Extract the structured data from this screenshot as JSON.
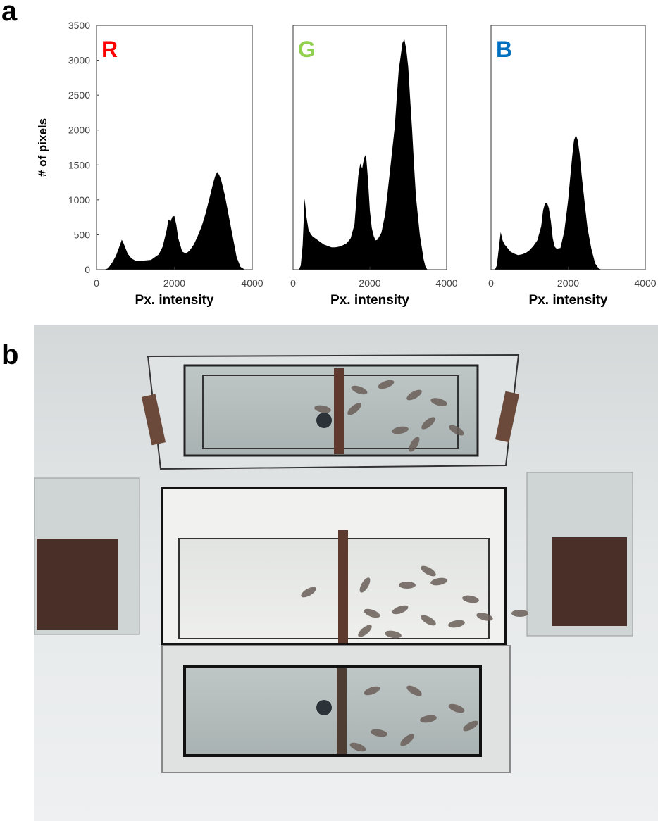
{
  "panels": {
    "a": "a",
    "b": "b"
  },
  "chart_data": [
    {
      "type": "area",
      "channel": "R",
      "color": "#ff0000",
      "xlabel": "Px. intensity",
      "ylabel": "# of pixels",
      "xlim": [
        0,
        4000
      ],
      "ylim": [
        0,
        3500
      ],
      "xticks": [
        "0",
        "2000",
        "4000"
      ],
      "yticks": [
        "0",
        "500",
        "1000",
        "1500",
        "2000",
        "2500",
        "3000",
        "3500"
      ],
      "x": [
        0,
        200,
        300,
        400,
        500,
        600,
        650,
        700,
        800,
        900,
        1000,
        1200,
        1400,
        1600,
        1700,
        1800,
        1850,
        1900,
        1950,
        2000,
        2050,
        2100,
        2200,
        2300,
        2400,
        2500,
        2600,
        2700,
        2800,
        2900,
        3000,
        3050,
        3100,
        3150,
        3200,
        3300,
        3400,
        3500,
        3600,
        3700,
        3800,
        3900,
        4000
      ],
      "y": [
        0,
        0,
        20,
        100,
        200,
        350,
        430,
        370,
        230,
        160,
        130,
        130,
        140,
        220,
        330,
        560,
        720,
        690,
        760,
        770,
        640,
        450,
        260,
        230,
        280,
        360,
        480,
        620,
        800,
        1020,
        1250,
        1340,
        1400,
        1360,
        1290,
        1060,
        760,
        470,
        180,
        40,
        5,
        0,
        0
      ]
    },
    {
      "type": "area",
      "channel": "G",
      "color": "#92d050",
      "xlabel": "Px. intensity",
      "ylabel": "",
      "xlim": [
        0,
        4000
      ],
      "ylim": [
        0,
        3500
      ],
      "xticks": [
        "0",
        "2000",
        "4000"
      ],
      "yticks": [],
      "x": [
        0,
        150,
        200,
        250,
        300,
        350,
        400,
        450,
        500,
        550,
        600,
        700,
        800,
        900,
        1000,
        1100,
        1200,
        1300,
        1400,
        1500,
        1600,
        1700,
        1750,
        1800,
        1850,
        1900,
        1950,
        2000,
        2050,
        2100,
        2150,
        2200,
        2300,
        2400,
        2500,
        2600,
        2650,
        2700,
        2750,
        2800,
        2850,
        2900,
        2950,
        3000,
        3050,
        3100,
        3150,
        3200,
        3300,
        3400,
        3450,
        3500,
        4000
      ],
      "y": [
        0,
        0,
        60,
        350,
        1020,
        750,
        580,
        520,
        480,
        460,
        440,
        400,
        360,
        340,
        320,
        320,
        330,
        350,
        380,
        450,
        650,
        1350,
        1520,
        1450,
        1600,
        1650,
        1300,
        850,
        600,
        480,
        420,
        430,
        530,
        800,
        1300,
        1800,
        2050,
        2450,
        2850,
        3050,
        3250,
        3300,
        3150,
        2900,
        2450,
        2000,
        1500,
        1050,
        500,
        150,
        40,
        0,
        0
      ]
    },
    {
      "type": "area",
      "channel": "B",
      "color": "#0070c0",
      "xlabel": "Px. intensity",
      "ylabel": "",
      "xlim": [
        0,
        4000
      ],
      "ylim": [
        0,
        3500
      ],
      "xticks": [
        "0",
        "2000",
        "4000"
      ],
      "yticks": [],
      "x": [
        0,
        100,
        150,
        200,
        250,
        300,
        350,
        400,
        500,
        600,
        700,
        800,
        900,
        1000,
        1100,
        1200,
        1300,
        1350,
        1400,
        1450,
        1500,
        1550,
        1600,
        1650,
        1700,
        1800,
        1900,
        2000,
        2050,
        2100,
        2150,
        2200,
        2250,
        2300,
        2350,
        2400,
        2450,
        2500,
        2600,
        2700,
        2800,
        2900,
        4000
      ],
      "y": [
        0,
        0,
        60,
        300,
        540,
        420,
        360,
        330,
        260,
        230,
        210,
        220,
        240,
        280,
        340,
        420,
        620,
        850,
        950,
        960,
        880,
        700,
        450,
        330,
        300,
        310,
        550,
        1000,
        1300,
        1600,
        1850,
        1930,
        1850,
        1650,
        1350,
        1100,
        850,
        600,
        300,
        90,
        10,
        0,
        0
      ]
    }
  ]
}
